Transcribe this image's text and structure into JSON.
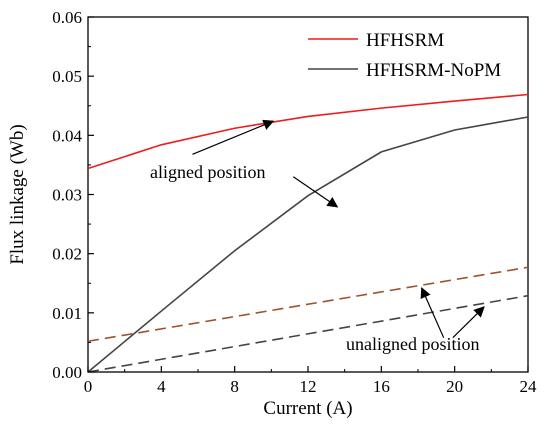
{
  "chart_data": {
    "type": "line",
    "xlabel": "Current (A)",
    "ylabel": "Flux linkage (Wb)",
    "xlim": [
      0,
      24
    ],
    "ylim": [
      0,
      0.06
    ],
    "xticks": [
      0,
      4,
      8,
      12,
      16,
      20,
      24
    ],
    "xtick_labels": [
      "0",
      "4",
      "8",
      "12",
      "16",
      "20",
      "24"
    ],
    "yticks": [
      0,
      0.01,
      0.02,
      0.03,
      0.04,
      0.05,
      0.06
    ],
    "ytick_labels": [
      "0.00",
      "0.01",
      "0.02",
      "0.03",
      "0.04",
      "0.05",
      "0.06"
    ],
    "grid": false,
    "legend_position": "top-right",
    "series": [
      {
        "name": "HFHSRM",
        "color": "#ee1c1c",
        "style": "solid",
        "x": [
          0,
          4,
          8,
          12,
          16,
          20,
          24
        ],
        "y": [
          0.0344,
          0.0384,
          0.0412,
          0.0432,
          0.0446,
          0.0458,
          0.0469
        ]
      },
      {
        "name": "HFHSRM-NoPM",
        "color": "#444444",
        "style": "solid",
        "x": [
          0,
          4,
          8,
          12,
          16,
          20,
          24
        ],
        "y": [
          0.0,
          0.0103,
          0.0205,
          0.0298,
          0.0372,
          0.0409,
          0.0431
        ]
      },
      {
        "color": "#a0522d",
        "style": "dashed",
        "x": [
          0,
          24
        ],
        "y": [
          0.0052,
          0.0177
        ]
      },
      {
        "color": "#444444",
        "style": "dashed",
        "x": [
          0,
          24
        ],
        "y": [
          0.0,
          0.0129
        ]
      }
    ],
    "annotations": [
      {
        "text": "aligned position",
        "arrows": [
          {
            "from": [
              5.7,
              0.0368
            ],
            "to": [
              10.1,
              0.0424
            ]
          },
          {
            "from": [
              11.2,
              0.033
            ],
            "to": [
              13.6,
              0.0279
            ]
          }
        ]
      },
      {
        "text": "unaligned position",
        "arrows": [
          {
            "from": [
              19.4,
              0.0058
            ],
            "to": [
              18.2,
              0.0142
            ]
          },
          {
            "from": [
              19.9,
              0.0058
            ],
            "to": [
              21.6,
              0.011
            ]
          }
        ]
      }
    ]
  }
}
